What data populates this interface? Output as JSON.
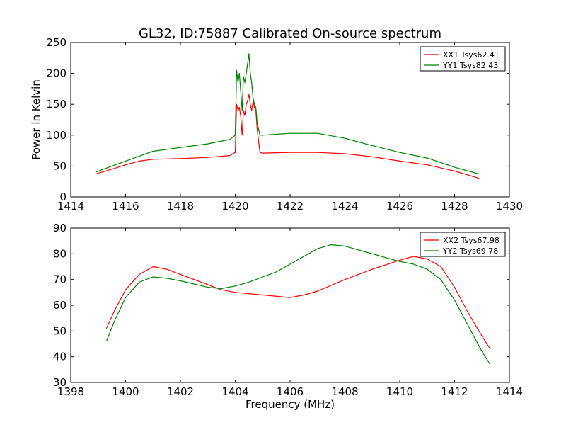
{
  "title": "GL32, ID:75887 Calibrated On-source spectrum",
  "xlabel": "Frequency (MHz)",
  "colors": {
    "XX": "#ff0000",
    "YY": "#008000"
  },
  "chart_data": [
    {
      "type": "line",
      "ylabel": "Power in Kelvin",
      "xlabel": "",
      "xlim": [
        1414,
        1430
      ],
      "ylim": [
        0,
        250
      ],
      "xticks": [
        1414,
        1416,
        1418,
        1420,
        1422,
        1424,
        1426,
        1428,
        1430
      ],
      "yticks": [
        0,
        50,
        100,
        150,
        200,
        250
      ],
      "legend_position": "top-right",
      "grid": false,
      "series": [
        {
          "name": "XX1 Tsys62.41",
          "color": "#ff0000",
          "x": [
            1414.9,
            1415.5,
            1416,
            1416.5,
            1417,
            1418,
            1419,
            1419.8,
            1420,
            1420.05,
            1420.1,
            1420.15,
            1420.2,
            1420.25,
            1420.3,
            1420.35,
            1420.4,
            1420.45,
            1420.5,
            1420.55,
            1420.6,
            1420.65,
            1420.7,
            1420.75,
            1420.8,
            1420.9,
            1421,
            1422,
            1423,
            1424,
            1425,
            1426,
            1427,
            1428,
            1428.9
          ],
          "y": [
            37,
            45,
            52,
            58,
            61,
            62,
            64,
            67,
            72,
            150,
            140,
            145,
            130,
            100,
            140,
            132,
            150,
            155,
            166,
            150,
            140,
            155,
            145,
            140,
            110,
            72,
            71,
            72,
            72,
            70,
            65,
            58,
            52,
            42,
            30
          ]
        },
        {
          "name": "YY1 Tsys82.43",
          "color": "#008000",
          "x": [
            1414.9,
            1415.5,
            1416,
            1416.5,
            1417,
            1418,
            1419,
            1419.8,
            1420,
            1420.05,
            1420.1,
            1420.15,
            1420.2,
            1420.25,
            1420.3,
            1420.35,
            1420.4,
            1420.45,
            1420.5,
            1420.55,
            1420.6,
            1420.65,
            1420.7,
            1420.75,
            1420.8,
            1420.9,
            1421,
            1422,
            1423,
            1424,
            1425,
            1426,
            1427,
            1428,
            1428.9
          ],
          "y": [
            40,
            50,
            58,
            66,
            74,
            80,
            86,
            93,
            100,
            205,
            185,
            200,
            170,
            140,
            195,
            185,
            200,
            215,
            232,
            200,
            185,
            160,
            150,
            145,
            120,
            100,
            100,
            103,
            103,
            95,
            83,
            72,
            63,
            48,
            37
          ]
        }
      ]
    },
    {
      "type": "line",
      "ylabel": "",
      "xlabel": "Frequency (MHz)",
      "xlim": [
        1398,
        1414
      ],
      "ylim": [
        30,
        90
      ],
      "xticks": [
        1398,
        1400,
        1402,
        1404,
        1406,
        1408,
        1410,
        1412,
        1414
      ],
      "yticks": [
        30,
        40,
        50,
        60,
        70,
        80,
        90
      ],
      "legend_position": "top-right",
      "grid": false,
      "series": [
        {
          "name": "XX2 Tsys67.98",
          "color": "#ff0000",
          "x": [
            1399.3,
            1399.6,
            1400,
            1400.5,
            1401,
            1401.5,
            1402,
            1402.5,
            1403,
            1403.5,
            1404,
            1405,
            1406,
            1406.5,
            1407,
            1408,
            1409,
            1410,
            1410.5,
            1411,
            1411.5,
            1412,
            1412.5,
            1413,
            1413.3
          ],
          "y": [
            51,
            58,
            66,
            72,
            75,
            74,
            72,
            70,
            68,
            66,
            65,
            64,
            63,
            64,
            65.5,
            70,
            74,
            77.5,
            79,
            78,
            75,
            67,
            57,
            48,
            43
          ]
        },
        {
          "name": "YY2 Tsys69.78",
          "color": "#008000",
          "x": [
            1399.3,
            1399.6,
            1400,
            1400.5,
            1401,
            1401.5,
            1402,
            1403,
            1403.5,
            1404,
            1404.5,
            1405,
            1405.5,
            1406,
            1406.5,
            1407,
            1407.5,
            1408,
            1408.5,
            1409,
            1409.5,
            1410,
            1410.5,
            1411,
            1411.5,
            1412,
            1412.5,
            1413,
            1413.3
          ],
          "y": [
            46,
            54,
            63,
            69,
            71,
            70.5,
            69.5,
            67,
            66.5,
            67.5,
            69,
            71,
            73,
            76,
            79,
            82,
            83.5,
            83,
            81.5,
            80,
            78.5,
            77,
            76,
            74,
            70,
            62,
            52,
            42,
            37
          ]
        }
      ]
    }
  ]
}
